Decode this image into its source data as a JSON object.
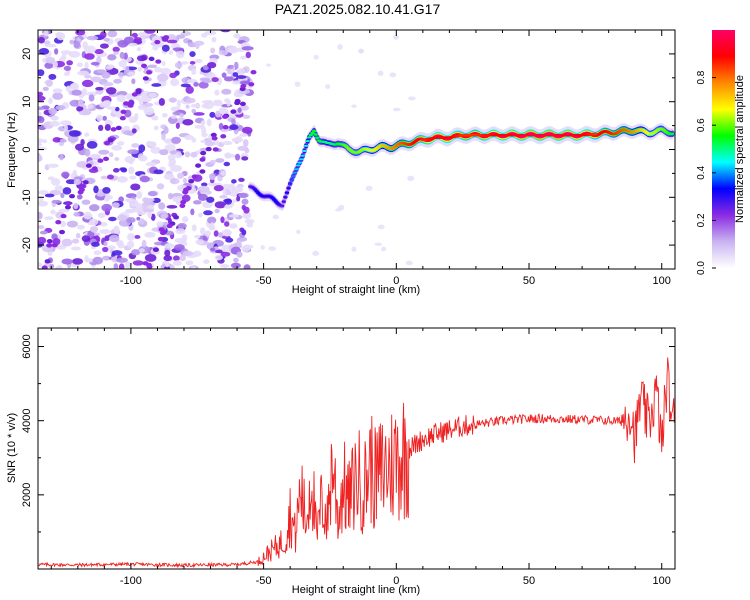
{
  "title": "PAZ1.2025.082.10.41.G17",
  "colors": {
    "axis": "#000000",
    "snr_line": "#ee2222",
    "background": "#ffffff"
  },
  "chart_data": [
    {
      "type": "heatmap",
      "xlabel": "Height of straight line (km)",
      "ylabel": "Frequency (Hz)",
      "xlim": [
        -135,
        105
      ],
      "ylim": [
        -25,
        25
      ],
      "x_ticks": [
        -100,
        -50,
        0,
        50,
        100
      ],
      "y_ticks": [
        -20,
        -10,
        0,
        10,
        20
      ],
      "grid": false,
      "colorbar": {
        "label": "Normalized spectral amplitude",
        "range": [
          0,
          1
        ],
        "ticks": [
          0.0,
          0.2,
          0.4,
          0.6,
          0.8
        ],
        "colormap": [
          "#ffffff",
          "#c9b3f2",
          "#8a2be2",
          "#0000ff",
          "#00ffff",
          "#00ff00",
          "#ffff00",
          "#ff8800",
          "#ff0000",
          "#ff0066"
        ]
      },
      "ridge": {
        "x": [
          -55,
          -52,
          -48,
          -45,
          -43,
          -41,
          -39,
          -37,
          -35,
          -33,
          -31,
          -29,
          -26,
          -22,
          -18,
          -14,
          -10,
          -6,
          -2,
          2,
          6,
          10,
          15,
          20,
          25,
          30,
          40,
          50,
          60,
          70,
          80,
          90,
          95,
          100,
          104
        ],
        "frequency": [
          -8,
          -9,
          -10,
          -11,
          -11.5,
          -9,
          -6,
          -3,
          -1,
          2,
          4,
          2,
          1,
          1.5,
          0,
          -0.5,
          0,
          0.5,
          0.5,
          1,
          1.5,
          2,
          2.5,
          2.5,
          3,
          3,
          3,
          3,
          3,
          3,
          3.5,
          4,
          3.5,
          4,
          3.5
        ],
        "amplitude": [
          0.25,
          0.3,
          0.3,
          0.3,
          0.25,
          0.3,
          0.35,
          0.4,
          0.4,
          0.45,
          0.5,
          0.5,
          0.45,
          0.5,
          0.55,
          0.55,
          0.6,
          0.65,
          0.7,
          0.75,
          0.8,
          0.85,
          0.9,
          0.9,
          0.85,
          0.85,
          0.9,
          0.95,
          0.95,
          0.9,
          0.8,
          0.7,
          0.6,
          0.55,
          0.5
        ]
      },
      "noise_region_x": [
        -135,
        -55
      ]
    },
    {
      "type": "line",
      "xlabel": "Height of straight line (km)",
      "ylabel": "SNR (10 * v/v)",
      "xlim": [
        -135,
        105
      ],
      "ylim": [
        0,
        6500
      ],
      "x_ticks": [
        -100,
        -50,
        0,
        50,
        100
      ],
      "y_ticks": [
        2000,
        4000,
        6000
      ],
      "grid": false,
      "series": [
        {
          "x": [
            -135,
            -120,
            -100,
            -80,
            -60,
            -52,
            -48,
            -45,
            -42,
            -40,
            -38,
            -36,
            -34,
            -32,
            -30,
            -28,
            -26,
            -24,
            -22,
            -20,
            -18,
            -15,
            -12,
            -10,
            -8,
            -5,
            -2,
            0,
            3,
            6,
            10,
            15,
            20,
            25,
            30,
            35,
            40,
            45,
            50,
            55,
            60,
            65,
            70,
            75,
            80,
            85,
            88,
            90,
            92,
            95,
            98,
            100,
            102,
            104
          ],
          "values": [
            120,
            110,
            130,
            100,
            120,
            200,
            450,
            600,
            800,
            1500,
            900,
            2200,
            1200,
            2700,
            800,
            1900,
            1300,
            3000,
            1400,
            2300,
            1800,
            2500,
            2200,
            2900,
            2400,
            2700,
            2800,
            3000,
            3100,
            3300,
            3500,
            3650,
            3750,
            3850,
            3900,
            3950,
            4000,
            4030,
            4050,
            4060,
            4050,
            4040,
            4030,
            4020,
            4000,
            3980,
            4300,
            3500,
            4600,
            3900,
            4800,
            3300,
            5200,
            4000
          ]
        }
      ]
    }
  ]
}
